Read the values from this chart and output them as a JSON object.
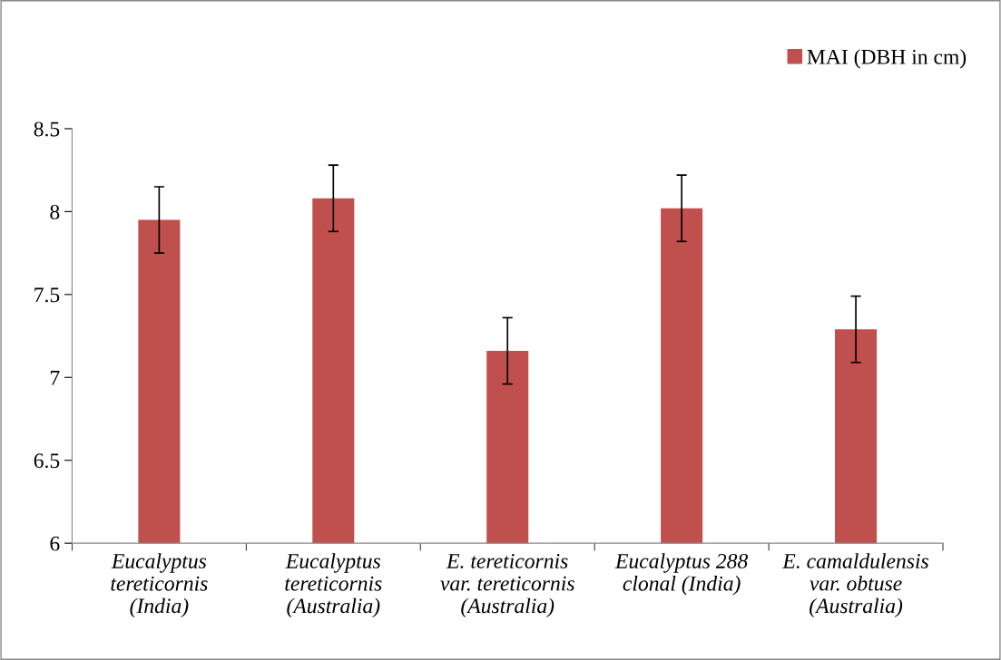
{
  "chart_data": {
    "type": "bar",
    "categories": [
      "Eucalyptus\ntereticornis\n(India)",
      "Eucalyptus\ntereticornis\n(Australia)",
      "E. tereticornis\nvar. tereticornis\n(Australia)",
      "Eucalyptus 288\nclonal (India)",
      "E. camaldulensis\nvar. obtuse\n(Australia)"
    ],
    "series": [
      {
        "name": "MAI (DBH in cm)",
        "color": "#c0504d",
        "values": [
          7.95,
          8.08,
          7.16,
          8.02,
          7.29
        ],
        "errors": [
          0.2,
          0.2,
          0.2,
          0.2,
          0.2
        ]
      }
    ],
    "ylim": [
      6,
      8.5
    ],
    "yticks": [
      6,
      {
        "value": 6.5,
        "label": "6.5"
      },
      7,
      {
        "value": 7.5,
        "label": "7.5"
      },
      8,
      {
        "value": 8.5,
        "label": "8.5"
      }
    ],
    "grid": false,
    "legend": "top right"
  }
}
